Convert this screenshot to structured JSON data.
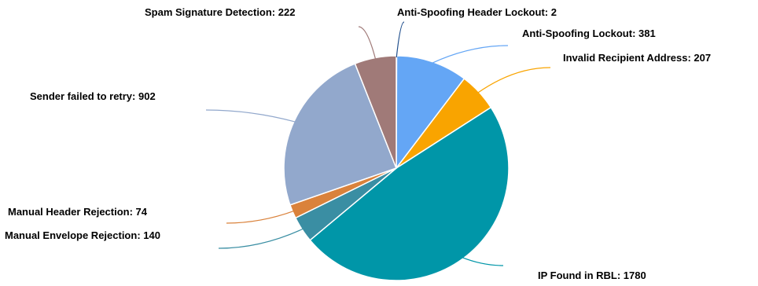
{
  "chart_data": {
    "type": "pie",
    "title": "",
    "slices": [
      {
        "label": "Anti-Spoofing Header Lockout",
        "value": 2,
        "text": "Anti-Spoofing Header Lockout: 2",
        "color": "#1f4e8c"
      },
      {
        "label": "Anti-Spoofing Lockout",
        "value": 381,
        "text": "Anti-Spoofing Lockout: 381",
        "color": "#64a6f5"
      },
      {
        "label": "Invalid Recipient Address",
        "value": 207,
        "text": "Invalid Recipient Address: 207",
        "color": "#f9a400"
      },
      {
        "label": "IP Found in RBL",
        "value": 1780,
        "text": "IP Found in RBL: 1780",
        "color": "#0096a8"
      },
      {
        "label": "Manual Envelope Rejection",
        "value": 140,
        "text": "Manual Envelope Rejection: 140",
        "color": "#3a8ea3"
      },
      {
        "label": "Manual Header Rejection",
        "value": 74,
        "text": "Manual Header Rejection: 74",
        "color": "#da823b"
      },
      {
        "label": "Sender failed to retry",
        "value": 902,
        "text": "Sender failed to retry: 902",
        "color": "#92a8cc"
      },
      {
        "label": "Spam Signature Detection",
        "value": 222,
        "text": "Spam Signature Detection: 222",
        "color": "#a07a78"
      }
    ]
  }
}
